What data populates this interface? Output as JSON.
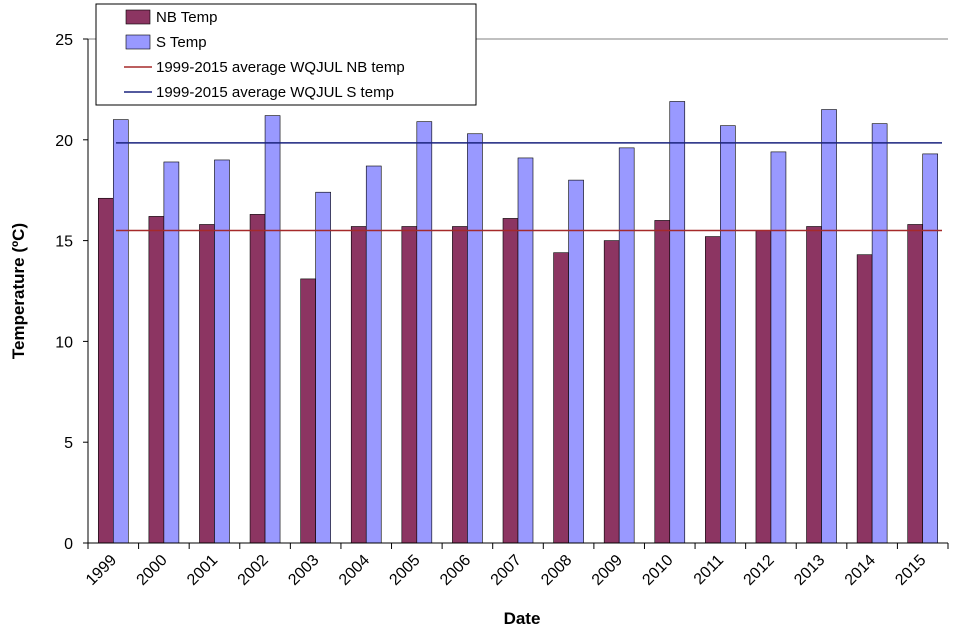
{
  "chart_data": {
    "type": "bar",
    "xlabel": "Date",
    "ylabel": "Temperature (ºC)",
    "ylim": [
      0,
      25
    ],
    "yticks": [
      0,
      5,
      10,
      15,
      20,
      25
    ],
    "grid": "horizontal line at 25",
    "legend_position": "top-left",
    "categories": [
      "1999",
      "2000",
      "2001",
      "2002",
      "2003",
      "2004",
      "2005",
      "2006",
      "2007",
      "2008",
      "2009",
      "2010",
      "2011",
      "2012",
      "2013",
      "2014",
      "2015"
    ],
    "series": [
      {
        "name": "NB Temp",
        "color": "#8c3562",
        "values": [
          17.1,
          16.2,
          15.8,
          16.3,
          13.1,
          15.7,
          15.7,
          15.7,
          16.1,
          14.4,
          15.0,
          16.0,
          15.2,
          15.5,
          15.7,
          14.3,
          15.8
        ]
      },
      {
        "name": "S Temp",
        "color": "#9999ff",
        "values": [
          21.0,
          18.9,
          19.0,
          21.2,
          17.4,
          18.7,
          20.9,
          20.3,
          19.1,
          18.0,
          19.6,
          21.9,
          20.7,
          19.4,
          21.5,
          20.8,
          19.3
        ]
      }
    ],
    "reference_lines": [
      {
        "name": "1999-2015 average WQJUL NB temp",
        "color": "#a52a2a",
        "value": 15.5
      },
      {
        "name": "1999-2015 average WQJUL S temp",
        "color": "#1a237e",
        "value": 19.85
      }
    ]
  }
}
